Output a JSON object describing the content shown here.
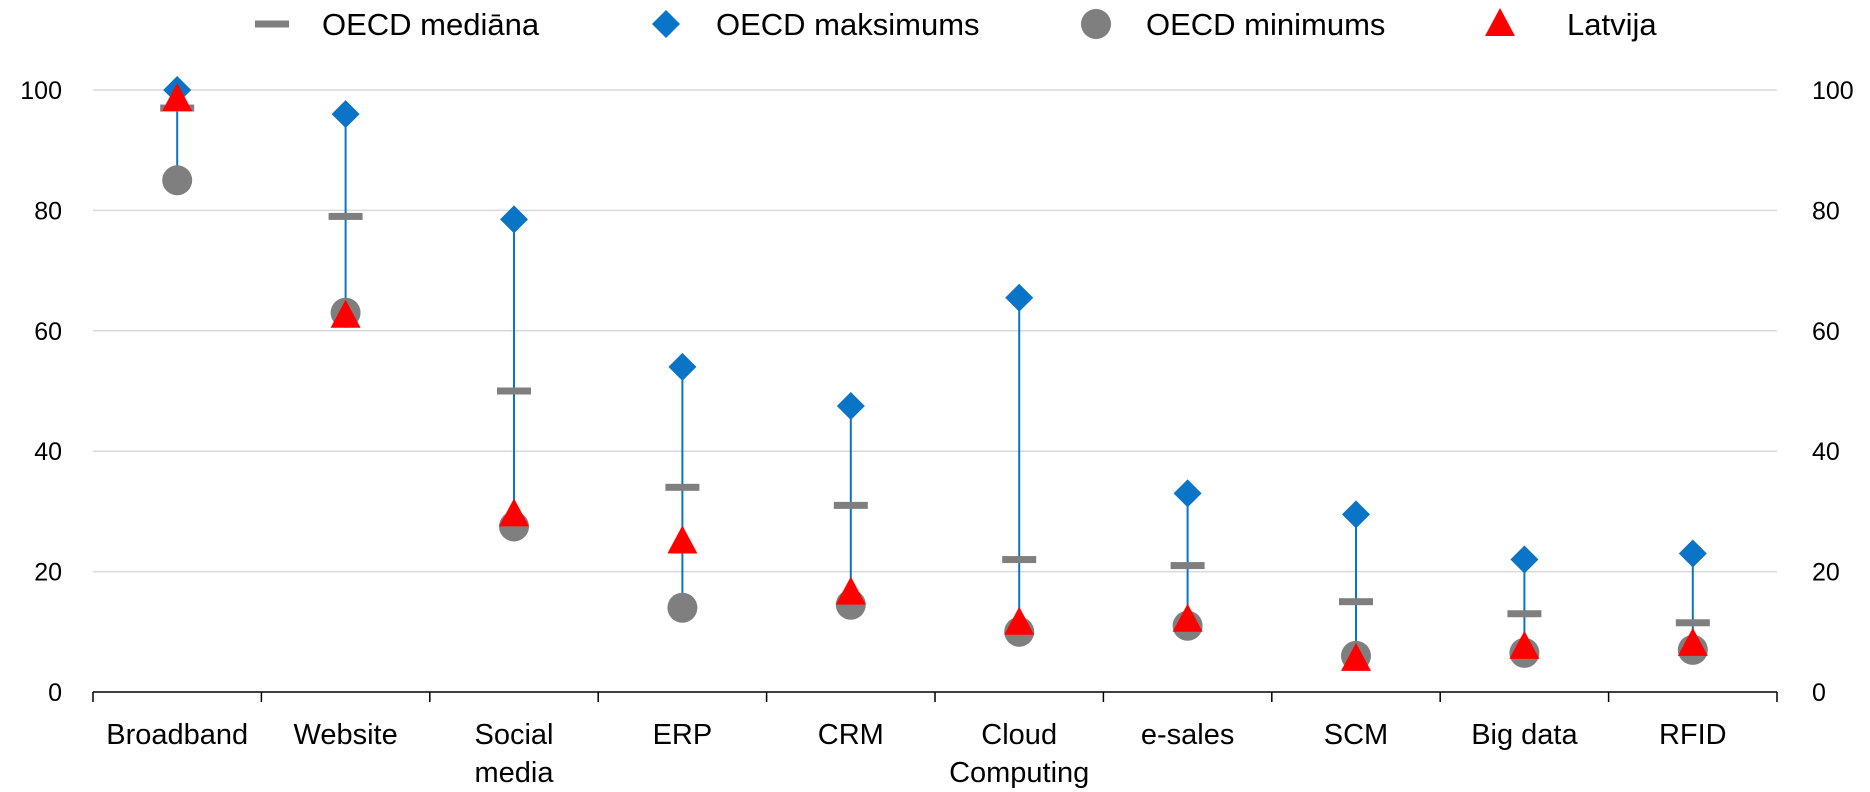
{
  "chart_data": {
    "type": "scatter",
    "title": "",
    "xlabel": "",
    "ylabel": "",
    "ylim": [
      0,
      100
    ],
    "yticks": [
      0,
      20,
      40,
      60,
      80,
      100
    ],
    "grid": true,
    "dual_y_axis": true,
    "legend_position": "top",
    "categories": [
      [
        "Broadband"
      ],
      [
        "Website"
      ],
      [
        "Social",
        "media"
      ],
      [
        "ERP"
      ],
      [
        "CRM"
      ],
      [
        "Cloud",
        "Computing"
      ],
      [
        "e-sales"
      ],
      [
        "SCM"
      ],
      [
        "Big data"
      ],
      [
        "RFID"
      ]
    ],
    "series": [
      {
        "name": "OECD mediāna",
        "marker": "dash",
        "color": "#7f7f7f",
        "values": [
          97,
          79,
          50,
          34,
          31,
          22,
          21,
          15,
          13,
          11.5
        ]
      },
      {
        "name": "OECD maksimums",
        "marker": "diamond",
        "color": "#0a74c7",
        "values": [
          100,
          96,
          78.5,
          54,
          47.5,
          65.5,
          33,
          29.5,
          22,
          23
        ]
      },
      {
        "name": "OECD minimums",
        "marker": "circle",
        "color": "#7f7f7f",
        "values": [
          85,
          63,
          27.5,
          14,
          14.5,
          10,
          11,
          6,
          6.5,
          7
        ]
      },
      {
        "name": "Latvija",
        "marker": "triangle",
        "color": "#ff0000",
        "values": [
          98.5,
          62.5,
          29.5,
          25,
          16.5,
          11.5,
          12,
          5.5,
          7.5,
          8
        ]
      }
    ],
    "colors": {
      "range_line": "#0a74c7",
      "grid": "#d9d9d9",
      "axis": "#000000"
    }
  }
}
